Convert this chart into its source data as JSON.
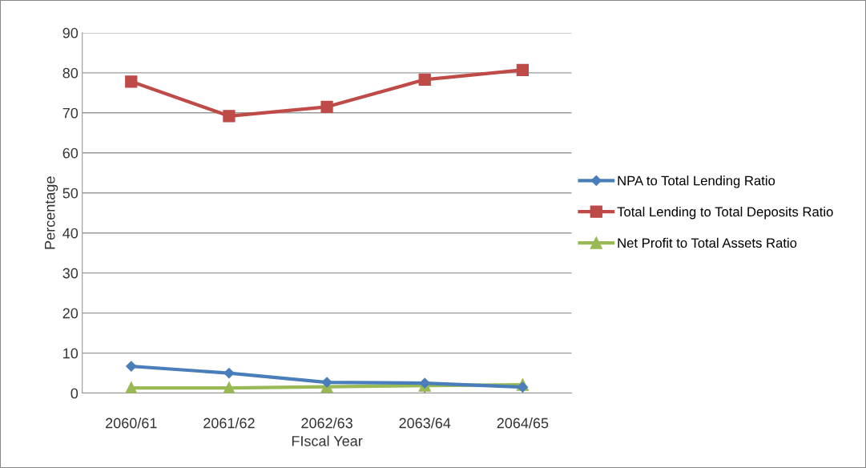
{
  "chart_data": {
    "type": "line",
    "xlabel": "FIscal Year",
    "ylabel": "Percentage",
    "categories": [
      "2060/61",
      "2061/62",
      "2062/63",
      "2063/64",
      "2064/65"
    ],
    "series": [
      {
        "name": "NPA to Total Lending Ratio",
        "color": "#4a7ebb",
        "marker": "diamond",
        "values": [
          6.7,
          5.0,
          2.7,
          2.5,
          1.5
        ]
      },
      {
        "name": "Total Lending to Total Deposits Ratio",
        "color": "#be4b48",
        "marker": "square",
        "values": [
          77.8,
          69.2,
          71.5,
          78.3,
          80.7
        ]
      },
      {
        "name": "Net Profit to Total Assets Ratio",
        "color": "#98b954",
        "marker": "triangle",
        "values": [
          1.3,
          1.3,
          1.6,
          1.9,
          2.1
        ]
      }
    ],
    "ylim": [
      0,
      90
    ],
    "yticks": [
      0,
      10,
      20,
      30,
      40,
      50,
      60,
      70,
      80,
      90
    ],
    "grid": "y",
    "legend": "right",
    "line_style": "solid"
  }
}
